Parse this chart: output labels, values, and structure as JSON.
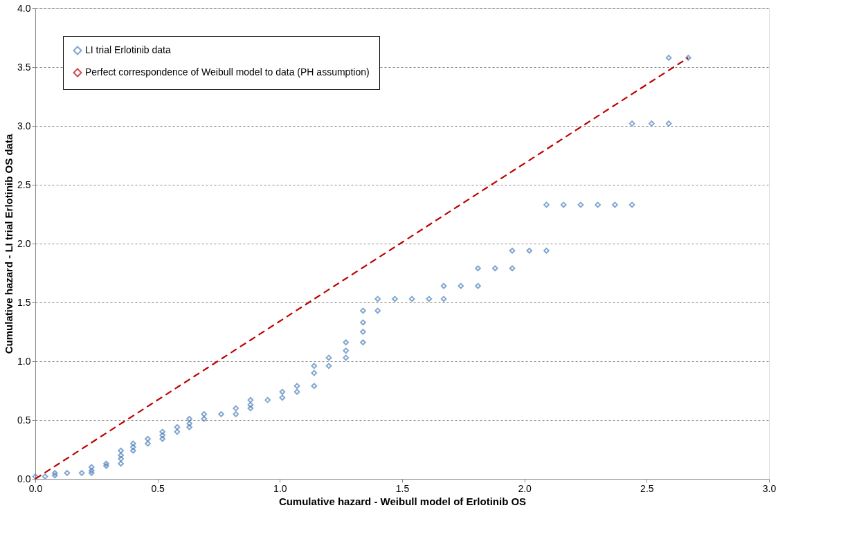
{
  "chart_data": {
    "type": "scatter",
    "xlabel": "Cumulative hazard - Weibull model of Erlotinib OS",
    "ylabel": "Cumulative hazard - LI trial Erlotinib OS data",
    "xlim": [
      0,
      3.0
    ],
    "xticks": [
      {
        "value": 0,
        "label": "0.0"
      },
      0.5,
      {
        "value": 1,
        "label": "1.0"
      },
      1.5,
      {
        "value": 2,
        "label": "2.0"
      },
      2.5,
      {
        "value": 3,
        "label": "3.0"
      }
    ],
    "ylim": [
      0,
      4.0
    ],
    "yticks": [
      {
        "value": 0,
        "label": "0.0"
      },
      0.5,
      {
        "value": 1,
        "label": "1.0"
      },
      1.5,
      {
        "value": 2,
        "label": "2.0"
      },
      2.5,
      {
        "value": 3,
        "label": "3.0"
      },
      3.5,
      {
        "value": 4,
        "label": "4.0"
      }
    ],
    "grid": "y",
    "legend": "top left",
    "series": [
      {
        "name": "LI trial Erlotinib data",
        "marker": "diamond",
        "color": "#4f81bd",
        "x": [
          0.0,
          0.04,
          0.08,
          0.08,
          0.13,
          0.19,
          0.23,
          0.23,
          0.23,
          0.29,
          0.29,
          0.35,
          0.35,
          0.35,
          0.35,
          0.4,
          0.4,
          0.4,
          0.46,
          0.46,
          0.52,
          0.52,
          0.52,
          0.58,
          0.58,
          0.63,
          0.63,
          0.63,
          0.69,
          0.69,
          0.76,
          0.82,
          0.82,
          0.88,
          0.88,
          0.88,
          0.95,
          1.01,
          1.01,
          1.07,
          1.07,
          1.14,
          1.14,
          1.14,
          1.2,
          1.2,
          1.27,
          1.27,
          1.27,
          1.34,
          1.34,
          1.34,
          1.34,
          1.4,
          1.4,
          1.47,
          1.54,
          1.61,
          1.67,
          1.67,
          1.74,
          1.81,
          1.81,
          1.88,
          1.95,
          1.95,
          2.02,
          2.09,
          2.09,
          2.16,
          2.23,
          2.3,
          2.37,
          2.44,
          2.44,
          2.52,
          2.59,
          2.59,
          2.67
        ],
        "values": [
          0.02,
          0.02,
          0.03,
          0.05,
          0.05,
          0.05,
          0.1,
          0.07,
          0.05,
          0.13,
          0.11,
          0.24,
          0.2,
          0.17,
          0.13,
          0.3,
          0.27,
          0.24,
          0.34,
          0.3,
          0.4,
          0.37,
          0.34,
          0.44,
          0.4,
          0.51,
          0.47,
          0.44,
          0.55,
          0.51,
          0.55,
          0.6,
          0.55,
          0.67,
          0.63,
          0.6,
          0.67,
          0.74,
          0.69,
          0.79,
          0.74,
          0.96,
          0.9,
          0.79,
          1.03,
          0.96,
          1.16,
          1.09,
          1.03,
          1.43,
          1.33,
          1.25,
          1.16,
          1.53,
          1.43,
          1.53,
          1.53,
          1.53,
          1.64,
          1.53,
          1.64,
          1.79,
          1.64,
          1.79,
          1.94,
          1.79,
          1.94,
          2.33,
          1.94,
          2.33,
          2.33,
          2.33,
          2.33,
          2.33,
          3.02,
          3.02,
          3.02,
          3.58,
          3.58
        ]
      },
      {
        "name": "Perfect correspondence of Weibull model to data (PH assumption)",
        "type": "line",
        "line_style": "dashed",
        "color": "#c00000",
        "x": [
          0,
          2.67
        ],
        "values": [
          0,
          3.58
        ]
      }
    ]
  }
}
